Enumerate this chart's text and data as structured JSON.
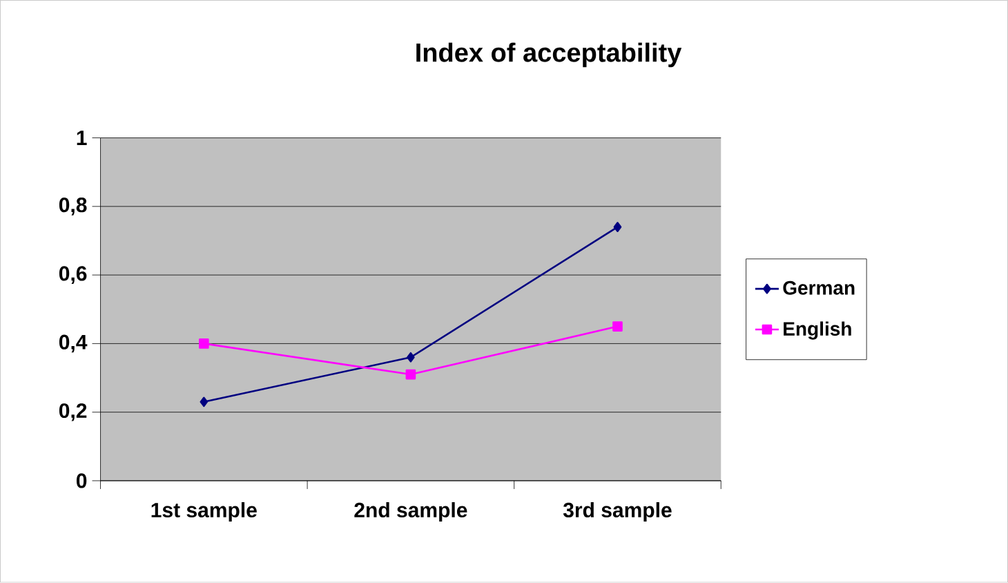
{
  "chart_data": {
    "type": "line",
    "title": "Index of acceptability",
    "categories": [
      "1st sample",
      "2nd sample",
      "3rd sample"
    ],
    "series": [
      {
        "name": "German",
        "color": "#000080",
        "marker": "diamond",
        "values": [
          0.23,
          0.36,
          0.74
        ]
      },
      {
        "name": "English",
        "color": "#ff00ff",
        "marker": "square",
        "values": [
          0.4,
          0.31,
          0.45
        ]
      }
    ],
    "ylim": [
      0,
      1
    ],
    "yticks": [
      0,
      {
        "value": 0.2,
        "label": "0,2"
      },
      {
        "value": 0.4,
        "label": "0,4"
      },
      {
        "value": 0.6,
        "label": "0,6"
      },
      {
        "value": 0.8,
        "label": "0,8"
      },
      1
    ],
    "grid": "y",
    "legend": "right",
    "line_style": "solid"
  }
}
